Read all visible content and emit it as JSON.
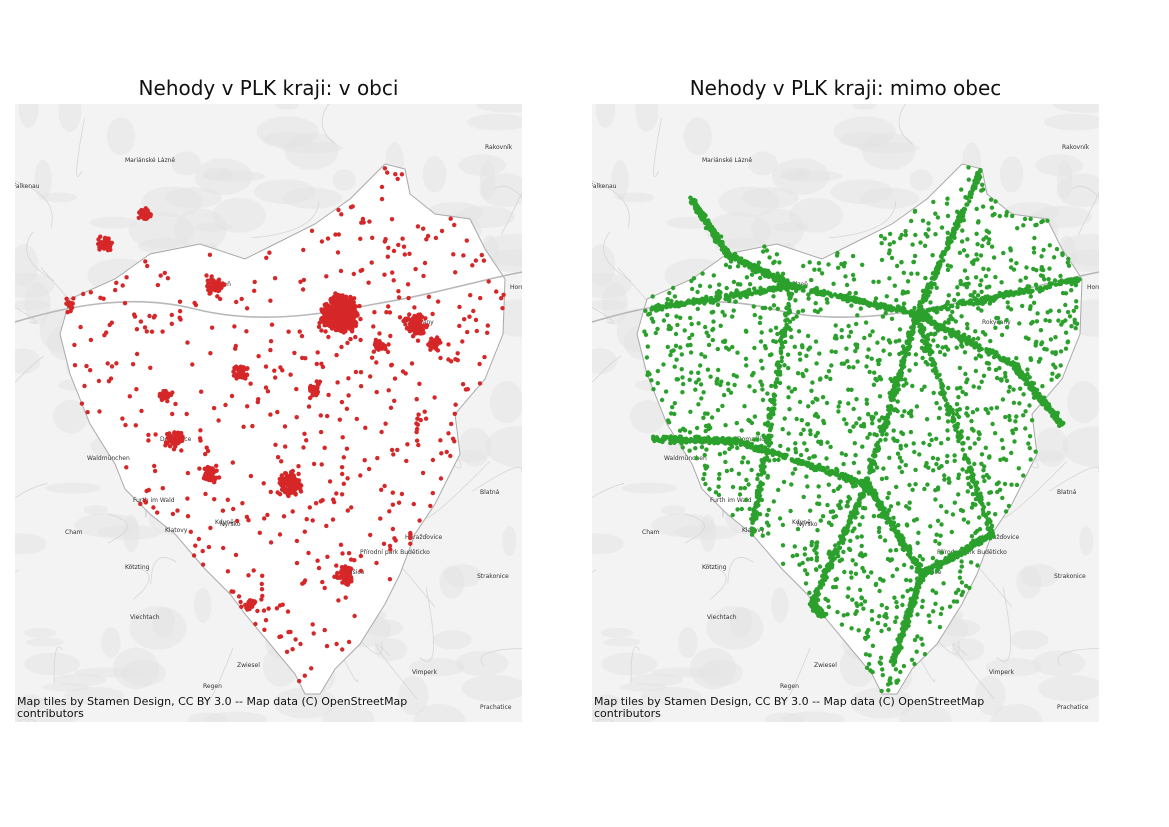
{
  "panels": [
    {
      "title": "Nehody v PLK kraji: v obci",
      "point_color": "#d62728",
      "attribution": [
        "Map tiles by Stamen Design, CC BY 3.0 -- Map data (C) OpenStreetMap",
        " contributors"
      ]
    },
    {
      "title": "Nehody v PLK kraji: mimo obec",
      "point_color": "#2ca02c",
      "attribution": [
        "Map tiles by Stamen Design, CC BY 3.0 -- Map data (C) OpenStreetMap",
        " contributors"
      ]
    }
  ],
  "place_labels": [
    "Mariánské Lázně",
    "Rakovník",
    "Falkenau",
    "Horo",
    "Furth im Wald",
    "Waldmünchen",
    "Cham",
    "Kötzting",
    "Viechtach",
    "Regen",
    "Zwiesel",
    "Klatovy",
    "Blatná",
    "Strakonice",
    "Vimperk",
    "Prachatice",
    "Přírodní park Buděticko",
    "Sušice",
    "Horažďovice",
    "Kdyně",
    "Plzeň",
    "Domažlice",
    "Nýrsko",
    "Rokycany"
  ]
}
